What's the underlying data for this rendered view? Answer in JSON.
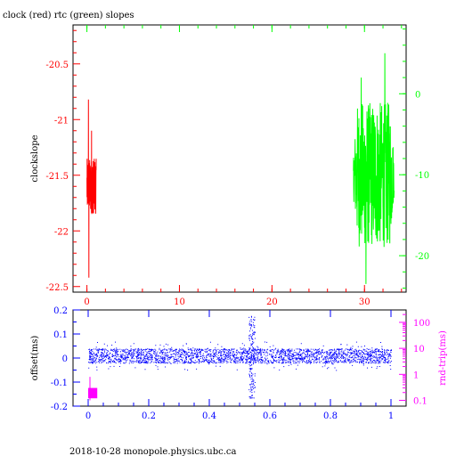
{
  "colors": {
    "clock": "#ff0000",
    "rtc": "#00ff00",
    "offset": "#0000ff",
    "rtt": "#ff00ff",
    "axis": "#000000"
  },
  "footer": "2018-10-28 monopole.physics.ubc.ca",
  "chart_data": [
    {
      "type": "line",
      "title": "clock (red) rtc (green) slopes",
      "xlabel": "",
      "ylabel": "clockslope",
      "xlim": [
        -1.5,
        34.5
      ],
      "ylim": [
        -22.55,
        -20.15
      ],
      "xticks": [
        "0",
        "10",
        "20",
        "30"
      ],
      "yticks": [
        "-20.5",
        "-21",
        "-21.5",
        "-22",
        "-22.5"
      ],
      "y2lim": [
        -24.5,
        8.5
      ],
      "y2ticks": [
        "0",
        "-10",
        "-20"
      ],
      "grid": false,
      "series": [
        {
          "x_range": [
            0,
            1
          ],
          "y_center": -21.6,
          "y_min": -22.42,
          "y_max": -20.82,
          "axis": "left"
        },
        {
          "x_range": [
            28.8,
            33.2
          ],
          "y_center": -10,
          "y_min": -23.5,
          "y_max": 5,
          "axis": "right"
        }
      ]
    },
    {
      "type": "scatter",
      "title": "",
      "xlabel": "",
      "ylabel": "offset(ms)",
      "y2label": "rnd-trip(ms)",
      "xlim": [
        -0.05,
        1.05
      ],
      "ylim": [
        -0.2,
        0.2
      ],
      "xticks": [
        "0",
        "0.2",
        "0.4",
        "0.6",
        "0.8",
        "1"
      ],
      "yticks": [
        "0.2",
        "0.1",
        "0",
        "-0.1",
        "-0.2"
      ],
      "y2scale": "log",
      "y2ticks": [
        "100",
        "10",
        "1",
        "0.1"
      ],
      "series": [
        {
          "x_range": [
            0,
            1
          ],
          "y_center": 0.01,
          "y_spread": 0.03,
          "feature": {
            "x_range": [
              0.53,
              0.55
            ],
            "y_min": -0.17,
            "y_max": 0.18
          }
        },
        {
          "x_range": [
            0,
            0.03
          ],
          "y_min": 0.1,
          "y_max": 0.8,
          "axis": "right"
        }
      ]
    }
  ]
}
